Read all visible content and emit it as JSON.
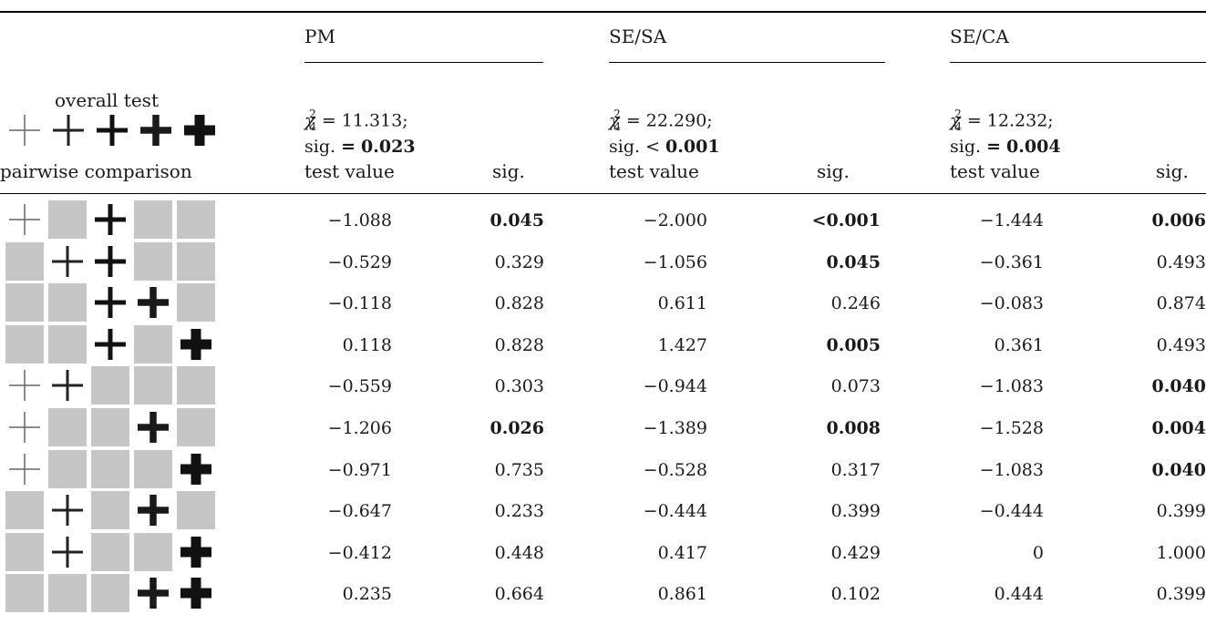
{
  "columns": {
    "group1": "PM",
    "group2": "SE/SA",
    "group3": "SE/CA"
  },
  "overall": {
    "label": "overall test",
    "pm": {
      "chi": "χ",
      "sub": "4",
      "sup": "2",
      "eq": " = 11.313;",
      "sig_prefix": "sig. ",
      "sig_op": "=",
      "sig_value": "0.023"
    },
    "sesa": {
      "chi": "χ",
      "sub": "4",
      "sup": "2",
      "eq": " = 22.290;",
      "sig_prefix": "sig. ",
      "sig_op": "<",
      "sig_value": "0.001"
    },
    "seca": {
      "chi": "χ",
      "sub": "4",
      "sup": "2",
      "eq": " = 12.232;",
      "sig_prefix": "sig. ",
      "sig_op": "=",
      "sig_value": "0.004"
    }
  },
  "subheader": {
    "pairwise": "pairwise comparison",
    "test_value": "test value",
    "sig": "sig."
  },
  "glyph_weights": [
    1,
    2,
    3,
    4,
    5
  ],
  "rows": [
    {
      "cells": [
        1,
        0,
        3,
        0,
        0
      ],
      "pm": [
        "−1.088",
        "0.045"
      ],
      "sesa": [
        "−2.000",
        "<0.001"
      ],
      "seca": [
        "−1.444",
        "0.006"
      ],
      "bold": [
        false,
        true,
        false,
        true,
        false,
        true
      ]
    },
    {
      "cells": [
        0,
        2,
        3,
        0,
        0
      ],
      "pm": [
        "−0.529",
        "0.329"
      ],
      "sesa": [
        "−1.056",
        "0.045"
      ],
      "seca": [
        "−0.361",
        "0.493"
      ],
      "bold": [
        false,
        false,
        false,
        true,
        false,
        false
      ]
    },
    {
      "cells": [
        0,
        0,
        3,
        4,
        0
      ],
      "pm": [
        "−0.118",
        "0.828"
      ],
      "sesa": [
        "0.611",
        "0.246"
      ],
      "seca": [
        "−0.083",
        "0.874"
      ],
      "bold": [
        false,
        false,
        false,
        false,
        false,
        false
      ]
    },
    {
      "cells": [
        0,
        0,
        3,
        0,
        5
      ],
      "pm": [
        "0.118",
        "0.828"
      ],
      "sesa": [
        "1.427",
        "0.005"
      ],
      "seca": [
        "0.361",
        "0.493"
      ],
      "bold": [
        false,
        false,
        false,
        true,
        false,
        false
      ]
    },
    {
      "cells": [
        1,
        2,
        0,
        0,
        0
      ],
      "pm": [
        "−0.559",
        "0.303"
      ],
      "sesa": [
        "−0.944",
        "0.073"
      ],
      "seca": [
        "−1.083",
        "0.040"
      ],
      "bold": [
        false,
        false,
        false,
        false,
        false,
        true
      ]
    },
    {
      "cells": [
        1,
        0,
        0,
        4,
        0
      ],
      "pm": [
        "−1.206",
        "0.026"
      ],
      "sesa": [
        "−1.389",
        "0.008"
      ],
      "seca": [
        "−1.528",
        "0.004"
      ],
      "bold": [
        false,
        true,
        false,
        true,
        false,
        true
      ]
    },
    {
      "cells": [
        1,
        0,
        0,
        0,
        5
      ],
      "pm": [
        "−0.971",
        "0.735"
      ],
      "sesa": [
        "−0.528",
        "0.317"
      ],
      "seca": [
        "−1.083",
        "0.040"
      ],
      "bold": [
        false,
        false,
        false,
        false,
        false,
        true
      ]
    },
    {
      "cells": [
        0,
        2,
        0,
        4,
        0
      ],
      "pm": [
        "−0.647",
        "0.233"
      ],
      "sesa": [
        "−0.444",
        "0.399"
      ],
      "seca": [
        "−0.444",
        "0.399"
      ],
      "bold": [
        false,
        false,
        false,
        false,
        false,
        false
      ]
    },
    {
      "cells": [
        0,
        2,
        0,
        0,
        5
      ],
      "pm": [
        "−0.412",
        "0.448"
      ],
      "sesa": [
        "0.417",
        "0.429"
      ],
      "seca": [
        "0",
        "1.000"
      ],
      "bold": [
        false,
        false,
        false,
        false,
        false,
        false
      ]
    },
    {
      "cells": [
        0,
        0,
        0,
        4,
        5
      ],
      "pm": [
        "0.235",
        "0.664"
      ],
      "sesa": [
        "0.861",
        "0.102"
      ],
      "seca": [
        "0.444",
        "0.399"
      ],
      "bold": [
        false,
        false,
        false,
        false,
        false,
        false
      ]
    }
  ]
}
